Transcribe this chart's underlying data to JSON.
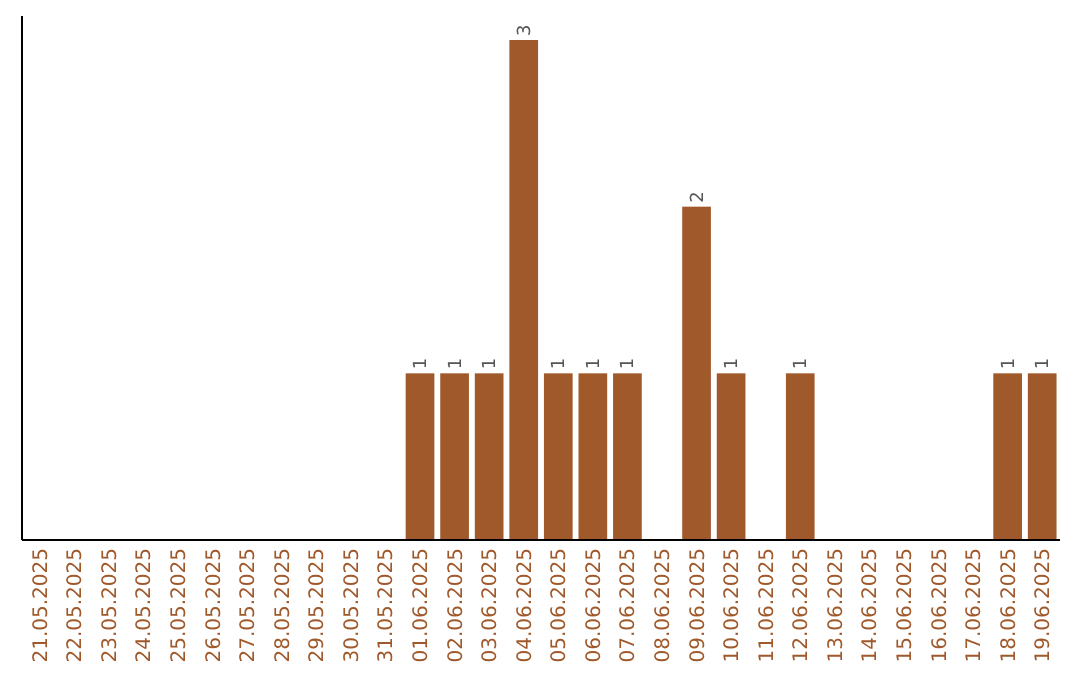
{
  "chart_data": {
    "type": "bar",
    "categories": [
      "21.05.2025",
      "22.05.2025",
      "23.05.2025",
      "24.05.2025",
      "25.05.2025",
      "26.05.2025",
      "27.05.2025",
      "28.05.2025",
      "29.05.2025",
      "30.05.2025",
      "31.05.2025",
      "01.06.2025",
      "02.06.2025",
      "03.06.2025",
      "04.06.2025",
      "05.06.2025",
      "06.06.2025",
      "07.06.2025",
      "08.06.2025",
      "09.06.2025",
      "10.06.2025",
      "11.06.2025",
      "12.06.2025",
      "13.06.2025",
      "14.06.2025",
      "15.06.2025",
      "16.06.2025",
      "17.06.2025",
      "18.06.2025",
      "19.06.2025"
    ],
    "values": [
      0,
      0,
      0,
      0,
      0,
      0,
      0,
      0,
      0,
      0,
      0,
      1,
      1,
      1,
      3,
      1,
      1,
      1,
      0,
      2,
      1,
      0,
      1,
      0,
      0,
      0,
      0,
      0,
      1,
      1
    ],
    "value_labels": [
      null,
      null,
      null,
      null,
      null,
      null,
      null,
      null,
      null,
      null,
      null,
      "1",
      "1",
      "1",
      "3",
      "1",
      "1",
      "1",
      null,
      "2",
      "1",
      null,
      "1",
      null,
      null,
      null,
      null,
      null,
      "1",
      "1"
    ],
    "color": "#a0592b",
    "tick_labels": "x",
    "grid": false
  }
}
